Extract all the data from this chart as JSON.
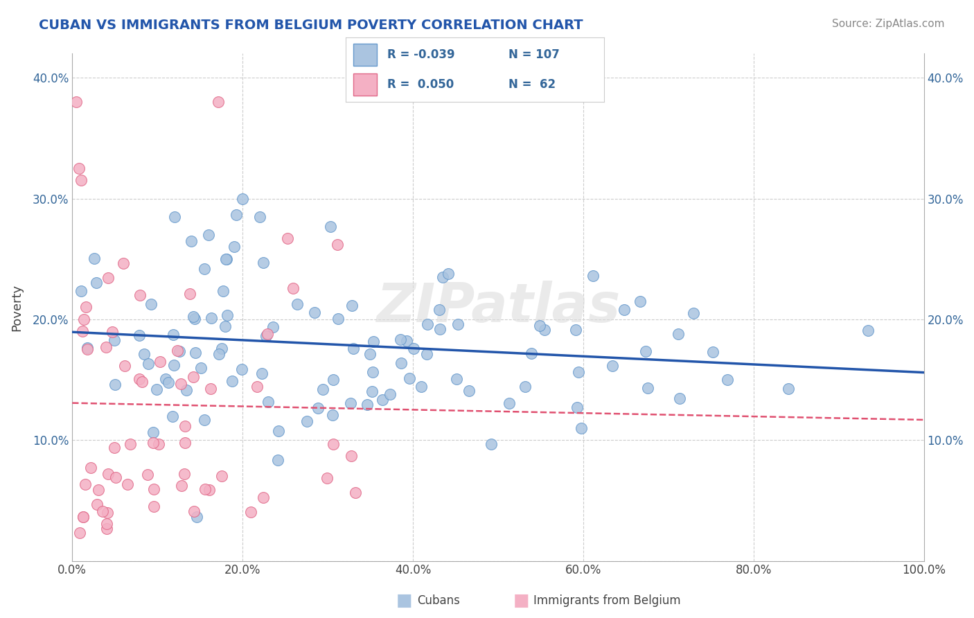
{
  "title": "CUBAN VS IMMIGRANTS FROM BELGIUM POVERTY CORRELATION CHART",
  "source": "Source: ZipAtlas.com",
  "ylabel": "Poverty",
  "xlim": [
    0.0,
    1.0
  ],
  "ylim": [
    0.0,
    0.42
  ],
  "x_ticks": [
    0.0,
    0.2,
    0.4,
    0.6,
    0.8,
    1.0
  ],
  "x_tick_labels": [
    "0.0%",
    "20.0%",
    "40.0%",
    "60.0%",
    "80.0%",
    "100.0%"
  ],
  "y_ticks": [
    0.0,
    0.1,
    0.2,
    0.3,
    0.4
  ],
  "y_tick_labels": [
    "",
    "10.0%",
    "20.0%",
    "30.0%",
    "40.0%"
  ],
  "cubans_R": -0.039,
  "cubans_N": 107,
  "belgium_R": 0.05,
  "belgium_N": 62,
  "cubans_color": "#aac4e0",
  "cubans_edge": "#6699cc",
  "belgium_color": "#f4b0c4",
  "belgium_edge": "#e06888",
  "cubans_line_color": "#2255aa",
  "belgium_line_color": "#e05070",
  "watermark": "ZIPatlas",
  "background_color": "#ffffff"
}
